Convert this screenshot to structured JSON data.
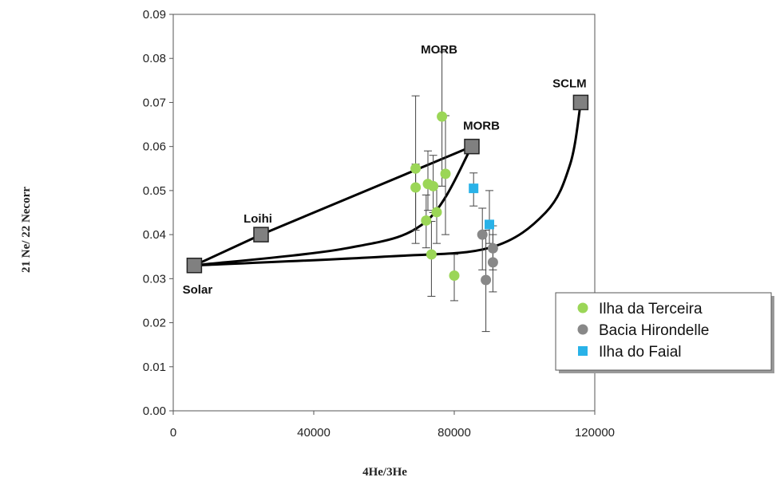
{
  "chart_data": {
    "type": "scatter",
    "xlabel": "4He/3He",
    "ylabel": "21 Ne/ 22 Necorr",
    "xlim": [
      0,
      120000
    ],
    "ylim": [
      0,
      0.09
    ],
    "xticks": [
      0,
      40000,
      80000,
      120000
    ],
    "xtick_labels": [
      "0",
      "40000",
      "80000",
      "120000"
    ],
    "yticks": [
      0,
      0.01,
      0.02,
      0.03,
      0.04,
      0.05,
      0.06,
      0.07,
      0.08,
      0.09
    ],
    "ytick_labels": [
      "0.00",
      "0.01",
      "0.02",
      "0.03",
      "0.04",
      "0.05",
      "0.06",
      "0.07",
      "0.08",
      "0.09"
    ],
    "grid": false,
    "legend_position": "right",
    "end_members": [
      {
        "label": "Solar",
        "x": 6000,
        "y": 0.033,
        "label_side": "below"
      },
      {
        "label": "Loihi",
        "x": 25000,
        "y": 0.04,
        "label_side": "above"
      },
      {
        "label": "MORB",
        "x": 85000,
        "y": 0.06,
        "label_side": "above-right"
      },
      {
        "label": "SCLM",
        "x": 116000,
        "y": 0.07,
        "label_side": "above-left"
      },
      {
        "label": "MORB",
        "x": 77500,
        "y": 0.08,
        "label_side": "above"
      }
    ],
    "mixing_lines": [
      {
        "points": [
          [
            6000,
            0.033
          ],
          [
            25000,
            0.04
          ],
          [
            85000,
            0.06
          ]
        ],
        "curve": "polyline"
      },
      {
        "points": [
          [
            6000,
            0.033
          ],
          [
            50000,
            0.037
          ],
          [
            72000,
            0.043
          ],
          [
            85000,
            0.06
          ]
        ],
        "curve": "smooth"
      },
      {
        "points": [
          [
            6000,
            0.033
          ],
          [
            60000,
            0.035
          ],
          [
            90000,
            0.037
          ],
          [
            106000,
            0.045
          ],
          [
            113000,
            0.056
          ],
          [
            116000,
            0.07
          ]
        ],
        "curve": "smooth"
      }
    ],
    "series": [
      {
        "name": "Ilha da Terceira",
        "color": "#9bd657",
        "marker": "circle",
        "points": [
          {
            "x": 69000,
            "y": 0.055,
            "ylo": 0.038,
            "yhi": 0.0715
          },
          {
            "x": 69000,
            "y": 0.0507,
            "ylo": 0.041,
            "yhi": 0.056
          },
          {
            "x": 72000,
            "y": 0.0432,
            "ylo": 0.037,
            "yhi": 0.049
          },
          {
            "x": 72500,
            "y": 0.0515,
            "ylo": 0.0455,
            "yhi": 0.059
          },
          {
            "x": 73500,
            "y": 0.0355,
            "ylo": 0.026,
            "yhi": 0.043
          },
          {
            "x": 74000,
            "y": 0.051,
            "ylo": 0.045,
            "yhi": 0.058
          },
          {
            "x": 75000,
            "y": 0.0451,
            "ylo": 0.038,
            "yhi": 0.051
          },
          {
            "x": 76500,
            "y": 0.0668,
            "ylo": 0.051,
            "yhi": 0.0815
          },
          {
            "x": 77500,
            "y": 0.0538,
            "ylo": 0.04,
            "yhi": 0.067
          },
          {
            "x": 80000,
            "y": 0.0307,
            "ylo": 0.025,
            "yhi": 0.0355
          }
        ]
      },
      {
        "name": "Bacia Hirondelle",
        "color": "#888888",
        "marker": "circle",
        "points": [
          {
            "x": 88000,
            "y": 0.04,
            "ylo": 0.032,
            "yhi": 0.046
          },
          {
            "x": 89000,
            "y": 0.0297,
            "ylo": 0.018,
            "yhi": 0.041
          },
          {
            "x": 91000,
            "y": 0.0369,
            "ylo": 0.032,
            "yhi": 0.042
          },
          {
            "x": 91000,
            "y": 0.0337,
            "ylo": 0.027,
            "yhi": 0.04
          }
        ]
      },
      {
        "name": "Ilha do Faial",
        "color": "#29b2e8",
        "marker": "square",
        "points": [
          {
            "x": 85500,
            "y": 0.0505,
            "ylo": 0.0465,
            "yhi": 0.054
          },
          {
            "x": 90000,
            "y": 0.0423,
            "ylo": 0.038,
            "yhi": 0.05
          }
        ]
      }
    ]
  }
}
